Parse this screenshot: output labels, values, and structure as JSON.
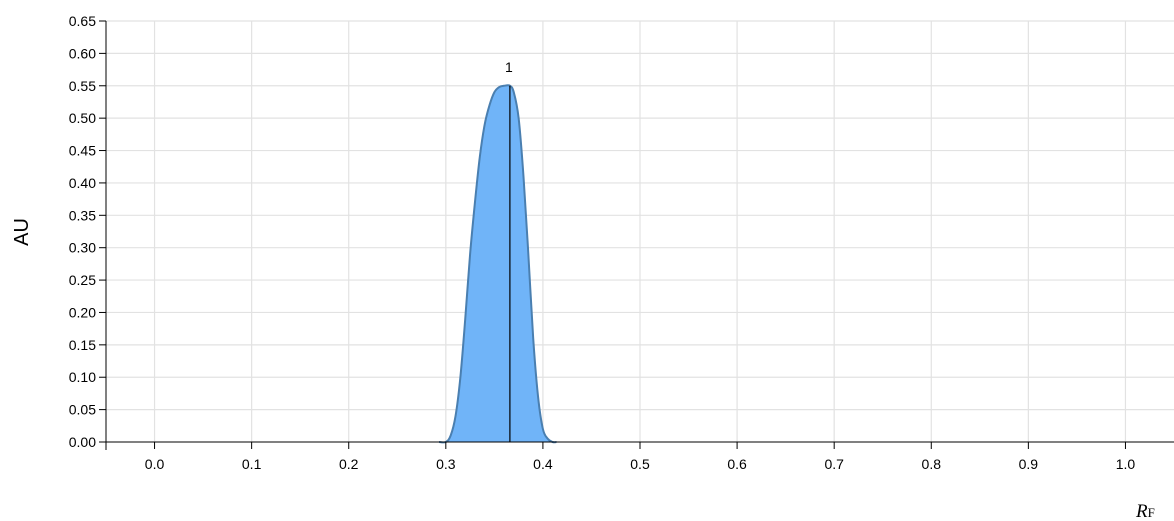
{
  "chart_data": {
    "type": "area",
    "title": "",
    "xlabel": "R",
    "xlabel_sub": "F",
    "ylabel": "AU",
    "xlim": [
      -0.05,
      1.05
    ],
    "ylim": [
      0,
      0.65
    ],
    "x_ticks": [
      "0.0",
      "0.1",
      "0.2",
      "0.3",
      "0.4",
      "0.5",
      "0.6",
      "0.7",
      "0.8",
      "0.9",
      "1.0"
    ],
    "y_ticks": [
      "0.00",
      "0.05",
      "0.10",
      "0.15",
      "0.20",
      "0.25",
      "0.30",
      "0.35",
      "0.40",
      "0.45",
      "0.50",
      "0.55",
      "0.60",
      "0.65"
    ],
    "grid": true,
    "series": [
      {
        "peak_label": "1",
        "color": "#70b4f8",
        "stroke": "#4a7fb0",
        "peak_x": 0.366,
        "peak_y": 0.55,
        "x": [
          0.293,
          0.3,
          0.305,
          0.31,
          0.315,
          0.32,
          0.325,
          0.33,
          0.335,
          0.34,
          0.345,
          0.35,
          0.355,
          0.36,
          0.366,
          0.37,
          0.375,
          0.38,
          0.385,
          0.39,
          0.395,
          0.4,
          0.405,
          0.41,
          0.414
        ],
        "y": [
          0.0,
          0.0,
          0.01,
          0.04,
          0.1,
          0.19,
          0.29,
          0.37,
          0.44,
          0.49,
          0.52,
          0.54,
          0.548,
          0.55,
          0.55,
          0.54,
          0.5,
          0.41,
          0.29,
          0.16,
          0.07,
          0.02,
          0.005,
          0.0,
          0.0
        ]
      }
    ]
  }
}
